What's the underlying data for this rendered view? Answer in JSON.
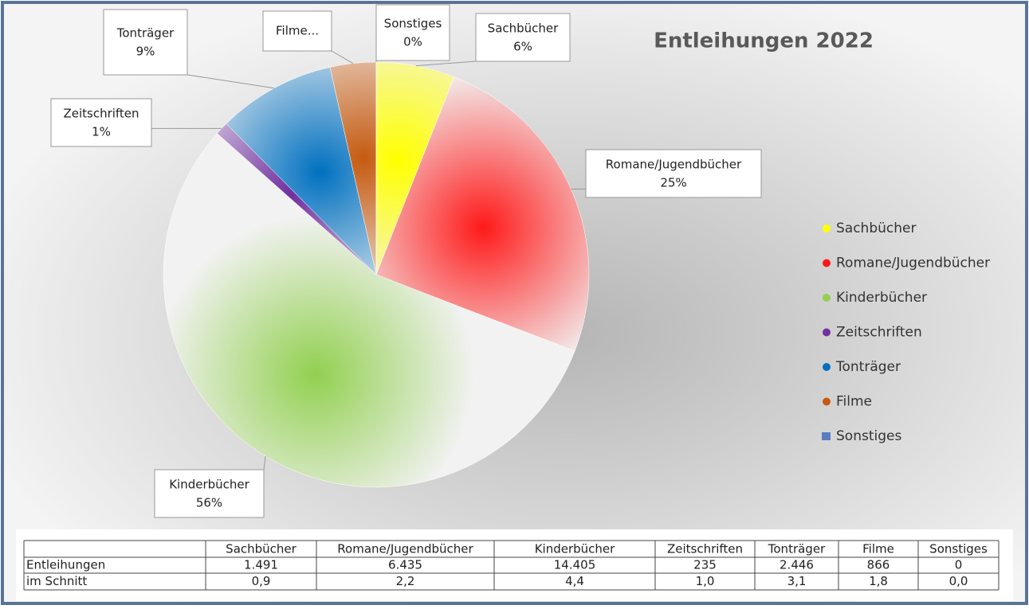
{
  "chart_data": {
    "type": "pie",
    "title": "Entleihungen 2022",
    "categories": [
      "Sachbücher",
      "Romane/Jugendbücher",
      "Kinderbücher",
      "Zeitschriften",
      "Tonträger",
      "Filme",
      "Sonstiges"
    ],
    "values": [
      6,
      25,
      56,
      1,
      9,
      3.5,
      0
    ],
    "value_labels": [
      "6%",
      "25%",
      "56%",
      "1%",
      "9%",
      null,
      "0%"
    ],
    "label_names": [
      "Sachbücher",
      "Romane/Jugendbücher",
      "Kinderbücher",
      "Zeitschriften",
      "Tonträger",
      "Filme...",
      "Sonstiges"
    ],
    "colors": [
      "#ffff00",
      "#ff1a1a",
      "#92d050",
      "#7030a0",
      "#0070c0",
      "#c55a11",
      "#5b7dbf"
    ],
    "legend": "right",
    "table": {
      "rows": [
        {
          "name": "Entleihungen",
          "cells": [
            "1.491",
            "6.435",
            "14.405",
            "235",
            "2.446",
            "866",
            "0"
          ]
        },
        {
          "name": "im Schnitt",
          "cells": [
            "0,9",
            "2,2",
            "4,4",
            "1,0",
            "3,1",
            "1,8",
            "0,0"
          ]
        }
      ]
    }
  }
}
